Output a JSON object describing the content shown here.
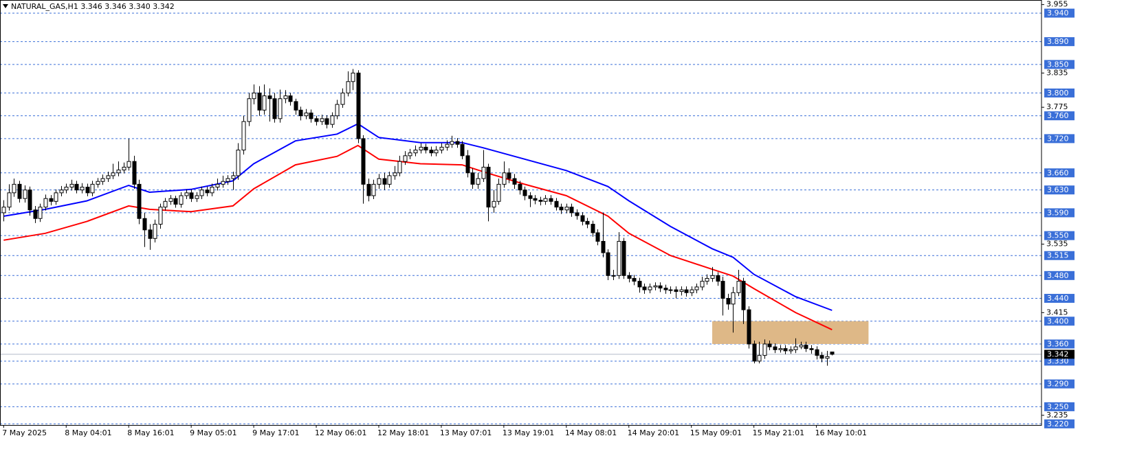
{
  "chart_data": {
    "type": "candlestick",
    "title": "NATURAL_GAS,H1 3.346 3.346 3.340 3.342",
    "xlim": [
      -0.7,
      199.2
    ],
    "ylim": [
      3.218,
      3.963
    ],
    "xticks": [
      {
        "value": 0,
        "label": "7 May 2025"
      },
      {
        "value": 12,
        "label": "8 May 04:01"
      },
      {
        "value": 24,
        "label": "8 May 16:01"
      },
      {
        "value": 36,
        "label": "9 May 05:01"
      },
      {
        "value": 48,
        "label": "9 May 17:01"
      },
      {
        "value": 60,
        "label": "12 May 06:01"
      },
      {
        "value": 72,
        "label": "12 May 18:01"
      },
      {
        "value": 84,
        "label": "13 May 07:01"
      },
      {
        "value": 96,
        "label": "13 May 19:01"
      },
      {
        "value": 108,
        "label": "14 May 08:01"
      },
      {
        "value": 120,
        "label": "14 May 20:01"
      },
      {
        "value": 132,
        "label": "15 May 09:01"
      },
      {
        "value": 144,
        "label": "15 May 21:01"
      },
      {
        "value": 156,
        "label": "16 May 10:01"
      }
    ],
    "yticks": [
      3.955,
      3.835,
      3.775,
      3.535,
      3.415,
      3.235
    ],
    "levels": [
      {
        "value": 3.94,
        "label": "3.940"
      },
      {
        "value": 3.89,
        "label": "3.890"
      },
      {
        "value": 3.85,
        "label": "3.850"
      },
      {
        "value": 3.8,
        "label": "3.800"
      },
      {
        "value": 3.76,
        "label": "3.760"
      },
      {
        "value": 3.72,
        "label": "3.720"
      },
      {
        "value": 3.66,
        "label": "3.660"
      },
      {
        "value": 3.63,
        "label": "3.630"
      },
      {
        "value": 3.59,
        "label": "3.590"
      },
      {
        "value": 3.55,
        "label": "3.550"
      },
      3.515,
      {
        "value": 3.48,
        "label": "3.480"
      },
      {
        "value": 3.44,
        "label": "3.440"
      },
      {
        "value": 3.4,
        "label": "3.400"
      },
      {
        "value": 3.36,
        "label": "3.360"
      },
      {
        "value": 3.33,
        "label": "3.330"
      },
      {
        "value": 3.29,
        "label": "3.290"
      },
      {
        "value": 3.25,
        "label": "3.250"
      },
      {
        "value": 3.22,
        "label": "3.220"
      }
    ],
    "level_color": "#3a6fd8",
    "current_price": 3.342,
    "zone": {
      "low": 3.36,
      "high": 3.4,
      "x_start": 136,
      "x_end": 166,
      "color": "#deb887"
    },
    "open": [
      3.59,
      3.6,
      3.625,
      3.64,
      3.615,
      3.63,
      3.595,
      3.58,
      3.6,
      3.615,
      3.61,
      3.625,
      3.63,
      3.635,
      3.64,
      3.63,
      3.635,
      3.625,
      3.64,
      3.645,
      3.65,
      3.655,
      3.66,
      3.665,
      3.67,
      3.68,
      3.64,
      3.58,
      3.56,
      3.545,
      3.57,
      3.6,
      3.61,
      3.615,
      3.605,
      3.62,
      3.625,
      3.615,
      3.62,
      3.63,
      3.625,
      3.635,
      3.64,
      3.645,
      3.65,
      3.655,
      3.7,
      3.75,
      3.79,
      3.8,
      3.77,
      3.795,
      3.79,
      3.755,
      3.79,
      3.795,
      3.785,
      3.77,
      3.76,
      3.765,
      3.755,
      3.75,
      3.755,
      3.745,
      3.76,
      3.78,
      3.8,
      3.82,
      3.835,
      3.72,
      3.64,
      3.62,
      3.64,
      3.65,
      3.64,
      3.655,
      3.66,
      3.68,
      3.69,
      3.695,
      3.7,
      3.705,
      3.7,
      3.695,
      3.7,
      3.705,
      3.71,
      3.715,
      3.71,
      3.69,
      3.66,
      3.64,
      3.65,
      3.67,
      3.6,
      3.61,
      3.64,
      3.66,
      3.65,
      3.64,
      3.63,
      3.62,
      3.615,
      3.612,
      3.61,
      3.615,
      3.61,
      3.6,
      3.595,
      3.6,
      3.59,
      3.585,
      3.575,
      3.57,
      3.555,
      3.54,
      3.52,
      3.48,
      3.48,
      3.54,
      3.48,
      3.475,
      3.47,
      3.46,
      3.455,
      3.46,
      3.462,
      3.458,
      3.455,
      3.455,
      3.452,
      3.455,
      3.45,
      3.455,
      3.46,
      3.47,
      3.475,
      3.48,
      3.47,
      3.44,
      3.43,
      3.45,
      3.47,
      3.42,
      3.36,
      3.33,
      3.34,
      3.36,
      3.355,
      3.35,
      3.352,
      3.348,
      3.35,
      3.355,
      3.358,
      3.352,
      3.35,
      3.34,
      3.335,
      3.346
    ],
    "high": [
      3.612,
      3.64,
      3.65,
      3.646,
      3.638,
      3.636,
      3.602,
      3.606,
      3.622,
      3.621,
      3.631,
      3.637,
      3.641,
      3.648,
      3.646,
      3.642,
      3.641,
      3.646,
      3.651,
      3.657,
      3.662,
      3.676,
      3.68,
      3.678,
      3.72,
      3.69,
      3.648,
      3.59,
      3.57,
      3.578,
      3.606,
      3.616,
      3.621,
      3.62,
      3.626,
      3.631,
      3.631,
      3.626,
      3.636,
      3.636,
      3.641,
      3.65,
      3.655,
      3.656,
      3.662,
      3.712,
      3.76,
      3.8,
      3.815,
      3.812,
      3.815,
      3.808,
      3.8,
      3.806,
      3.805,
      3.8,
      3.79,
      3.776,
      3.772,
      3.771,
      3.76,
      3.762,
      3.761,
      3.766,
      3.788,
      3.808,
      3.838,
      3.842,
      3.84,
      3.726,
      3.65,
      3.648,
      3.658,
      3.66,
      3.662,
      3.672,
      3.69,
      3.698,
      3.702,
      3.708,
      3.712,
      3.711,
      3.706,
      3.707,
      3.712,
      3.717,
      3.725,
      3.721,
      3.716,
      3.7,
      3.668,
      3.66,
      3.7,
      3.676,
      3.63,
      3.65,
      3.68,
      3.668,
      3.658,
      3.646,
      3.636,
      3.626,
      3.621,
      3.618,
      3.621,
      3.621,
      3.616,
      3.606,
      3.606,
      3.606,
      3.596,
      3.591,
      3.581,
      3.576,
      3.561,
      3.59,
      3.526,
      3.49,
      3.556,
      3.546,
      3.486,
      3.481,
      3.476,
      3.466,
      3.466,
      3.468,
      3.468,
      3.464,
      3.461,
      3.461,
      3.461,
      3.461,
      3.461,
      3.466,
      3.478,
      3.482,
      3.495,
      3.486,
      3.478,
      3.448,
      3.46,
      3.49,
      3.476,
      3.426,
      3.366,
      3.364,
      3.368,
      3.366,
      3.361,
      3.358,
      3.358,
      3.356,
      3.37,
      3.364,
      3.364,
      3.358,
      3.356,
      3.346,
      3.348,
      3.346
    ],
    "low": [
      3.575,
      3.594,
      3.618,
      3.608,
      3.608,
      3.585,
      3.572,
      3.574,
      3.594,
      3.603,
      3.604,
      3.619,
      3.624,
      3.629,
      3.624,
      3.624,
      3.619,
      3.619,
      3.634,
      3.639,
      3.644,
      3.649,
      3.654,
      3.659,
      3.664,
      3.632,
      3.57,
      3.53,
      3.525,
      3.538,
      3.562,
      3.594,
      3.604,
      3.599,
      3.599,
      3.614,
      3.609,
      3.609,
      3.614,
      3.619,
      3.619,
      3.629,
      3.634,
      3.639,
      3.63,
      3.648,
      3.692,
      3.742,
      3.78,
      3.76,
      3.762,
      3.75,
      3.748,
      3.748,
      3.782,
      3.778,
      3.762,
      3.752,
      3.754,
      3.748,
      3.743,
      3.744,
      3.738,
      3.739,
      3.754,
      3.774,
      3.794,
      3.805,
      3.712,
      3.606,
      3.61,
      3.614,
      3.632,
      3.63,
      3.634,
      3.648,
      3.654,
      3.674,
      3.684,
      3.689,
      3.694,
      3.694,
      3.689,
      3.689,
      3.694,
      3.699,
      3.704,
      3.704,
      3.684,
      3.652,
      3.632,
      3.632,
      3.644,
      3.575,
      3.59,
      3.604,
      3.634,
      3.642,
      3.632,
      3.622,
      3.612,
      3.6,
      3.605,
      3.603,
      3.604,
      3.604,
      3.594,
      3.588,
      3.589,
      3.583,
      3.578,
      3.568,
      3.563,
      3.548,
      3.533,
      3.512,
      3.472,
      3.472,
      3.474,
      3.474,
      3.468,
      3.463,
      3.45,
      3.448,
      3.449,
      3.454,
      3.451,
      3.448,
      3.448,
      3.44,
      3.445,
      3.443,
      3.444,
      3.449,
      3.454,
      3.464,
      3.469,
      3.462,
      3.41,
      3.42,
      3.38,
      3.444,
      3.395,
      3.352,
      3.326,
      3.326,
      3.334,
      3.349,
      3.344,
      3.345,
      3.342,
      3.343,
      3.344,
      3.351,
      3.346,
      3.343,
      3.333,
      3.328,
      3.322,
      3.34
    ],
    "close": [
      3.6,
      3.625,
      3.64,
      3.615,
      3.63,
      3.595,
      3.58,
      3.6,
      3.615,
      3.61,
      3.625,
      3.63,
      3.635,
      3.64,
      3.63,
      3.635,
      3.625,
      3.64,
      3.645,
      3.65,
      3.655,
      3.66,
      3.665,
      3.67,
      3.68,
      3.64,
      3.58,
      3.56,
      3.545,
      3.57,
      3.6,
      3.61,
      3.615,
      3.605,
      3.62,
      3.625,
      3.615,
      3.62,
      3.63,
      3.625,
      3.635,
      3.64,
      3.645,
      3.65,
      3.655,
      3.7,
      3.75,
      3.79,
      3.8,
      3.77,
      3.795,
      3.79,
      3.755,
      3.79,
      3.795,
      3.785,
      3.77,
      3.76,
      3.765,
      3.755,
      3.75,
      3.755,
      3.745,
      3.76,
      3.78,
      3.8,
      3.82,
      3.835,
      3.72,
      3.64,
      3.62,
      3.64,
      3.65,
      3.64,
      3.655,
      3.66,
      3.68,
      3.69,
      3.695,
      3.7,
      3.705,
      3.7,
      3.695,
      3.7,
      3.705,
      3.71,
      3.715,
      3.71,
      3.69,
      3.66,
      3.64,
      3.65,
      3.67,
      3.6,
      3.61,
      3.64,
      3.66,
      3.65,
      3.64,
      3.63,
      3.62,
      3.615,
      3.612,
      3.61,
      3.615,
      3.61,
      3.6,
      3.595,
      3.6,
      3.59,
      3.585,
      3.575,
      3.57,
      3.555,
      3.54,
      3.52,
      3.48,
      3.48,
      3.54,
      3.48,
      3.475,
      3.47,
      3.46,
      3.455,
      3.46,
      3.462,
      3.458,
      3.455,
      3.455,
      3.452,
      3.455,
      3.45,
      3.455,
      3.46,
      3.47,
      3.475,
      3.48,
      3.47,
      3.44,
      3.43,
      3.45,
      3.47,
      3.42,
      3.36,
      3.33,
      3.34,
      3.36,
      3.355,
      3.35,
      3.352,
      3.348,
      3.35,
      3.355,
      3.358,
      3.352,
      3.35,
      3.34,
      3.335,
      3.338,
      3.342
    ],
    "series": [
      {
        "color": "#0000ff",
        "x": [
          0,
          8,
          16,
          24,
          28,
          36,
          44,
          48,
          56,
          64,
          68,
          72,
          80,
          88,
          92,
          100,
          108,
          116,
          120,
          128,
          136,
          140,
          144,
          152,
          159
        ],
        "values": [
          3.584,
          3.596,
          3.611,
          3.638,
          3.626,
          3.631,
          3.646,
          3.676,
          3.716,
          3.728,
          3.746,
          3.722,
          3.713,
          3.713,
          3.704,
          3.684,
          3.664,
          3.636,
          3.611,
          3.566,
          3.527,
          3.512,
          3.482,
          3.443,
          3.419
        ]
      },
      {
        "color": "#ff0000",
        "x": [
          0,
          8,
          16,
          24,
          28,
          36,
          44,
          48,
          56,
          64,
          68,
          72,
          80,
          88,
          92,
          100,
          108,
          116,
          120,
          128,
          136,
          140,
          144,
          152,
          159
        ],
        "values": [
          3.542,
          3.554,
          3.575,
          3.602,
          3.596,
          3.592,
          3.602,
          3.632,
          3.674,
          3.689,
          3.708,
          3.684,
          3.676,
          3.674,
          3.662,
          3.64,
          3.62,
          3.584,
          3.554,
          3.515,
          3.491,
          3.479,
          3.457,
          3.415,
          3.385
        ]
      }
    ]
  }
}
